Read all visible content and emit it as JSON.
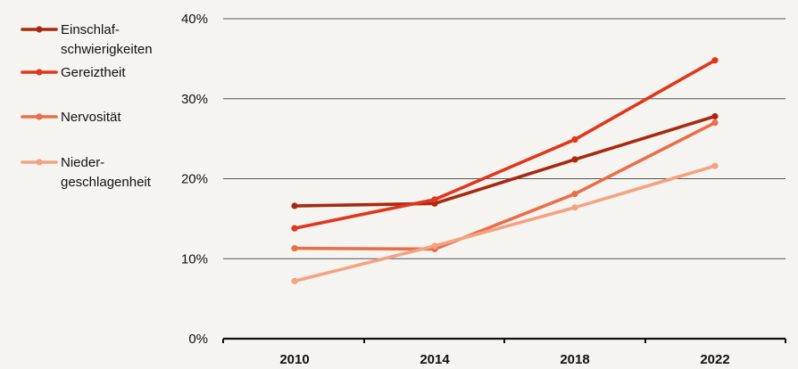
{
  "chart_data": {
    "type": "line",
    "title": "",
    "xlabel": "",
    "ylabel": "",
    "categories": [
      "2010",
      "2014",
      "2018",
      "2022"
    ],
    "ylim": [
      0,
      40
    ],
    "yticks": [
      0,
      10,
      20,
      30,
      40
    ],
    "ytick_labels": [
      "0%",
      "10%",
      "20%",
      "30%",
      "40%"
    ],
    "grid": true,
    "legend_position": "left",
    "series": [
      {
        "name": "Einschlafschwierigkeiten",
        "legend_lines": [
          "Einschlaf-",
          "schwierigkeiten"
        ],
        "color": "#a8290f",
        "values": [
          16.6,
          16.9,
          22.4,
          27.8
        ]
      },
      {
        "name": "Gereiztheit",
        "legend_lines": [
          "Gereiztheit"
        ],
        "color": "#e0361c",
        "values": [
          13.8,
          17.4,
          24.9,
          34.8
        ]
      },
      {
        "name": "Nervosität",
        "legend_lines": [
          "Nervosität"
        ],
        "color": "#ea6d4a",
        "values": [
          11.3,
          11.2,
          18.1,
          27.0
        ]
      },
      {
        "name": "Niedergeschlagenheit",
        "legend_lines": [
          "Nieder-",
          "geschlagenheit"
        ],
        "color": "#f2a382",
        "values": [
          7.2,
          11.6,
          16.4,
          21.6
        ]
      }
    ]
  }
}
